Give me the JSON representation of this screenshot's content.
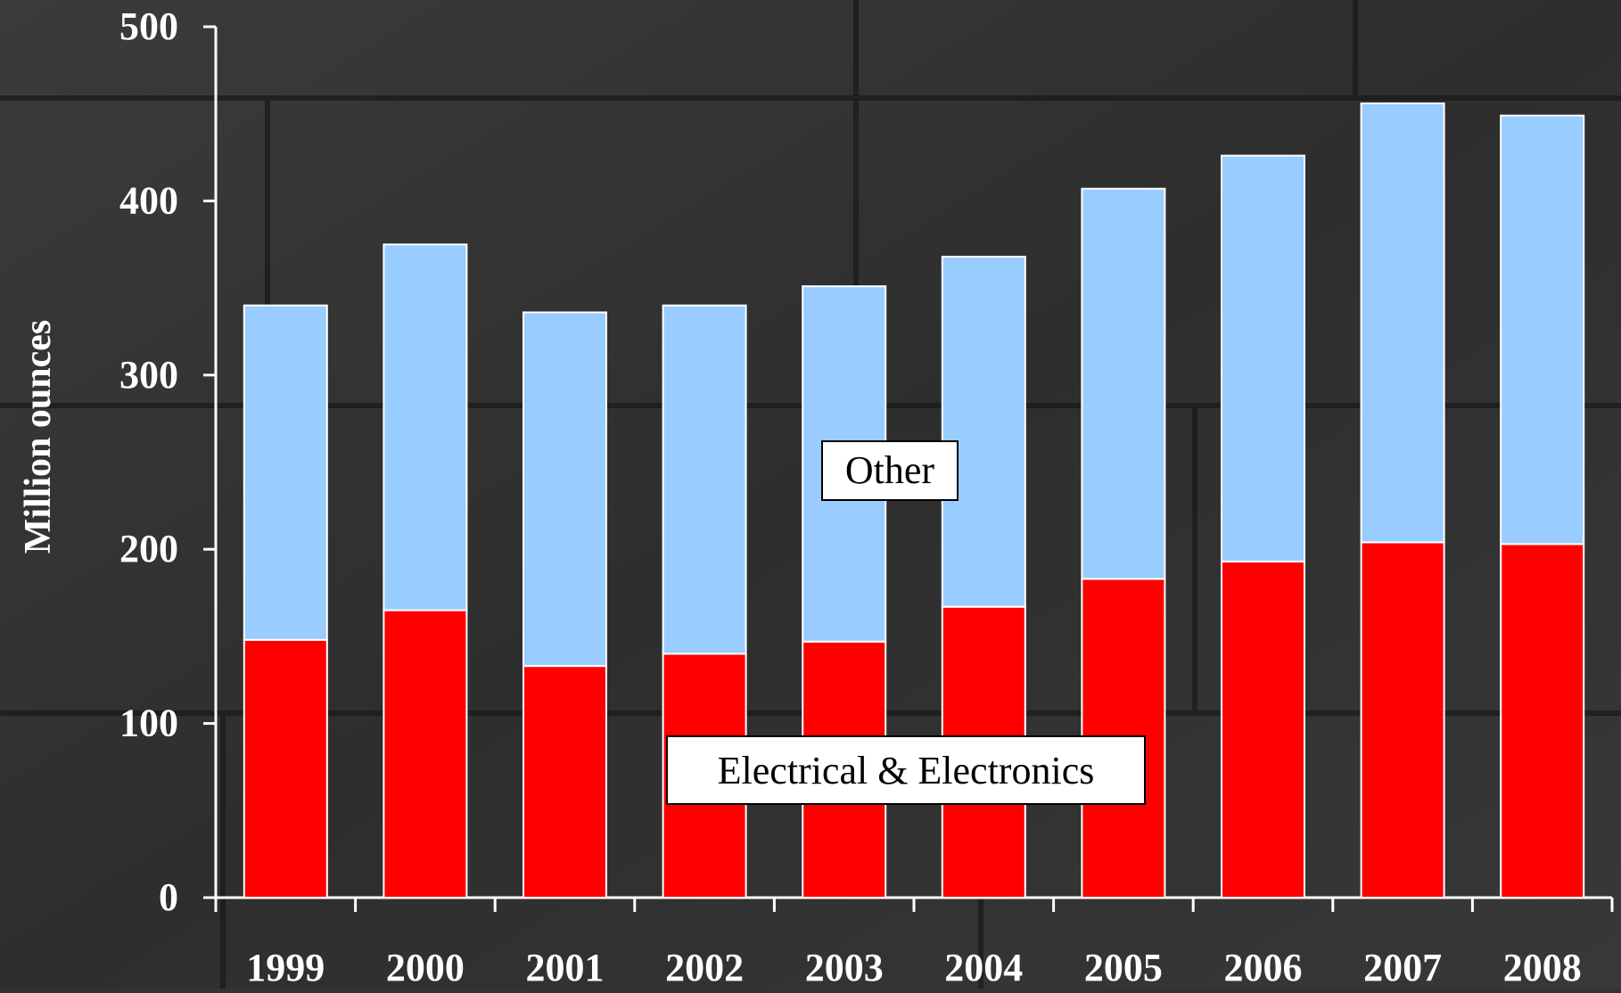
{
  "chart_data": {
    "type": "bar",
    "stacked": true,
    "categories": [
      "1999",
      "2000",
      "2001",
      "2002",
      "2003",
      "2004",
      "2005",
      "2006",
      "2007",
      "2008"
    ],
    "series": [
      {
        "name": "Electrical & Electronics",
        "color": "#ff0000",
        "values": [
          148,
          165,
          133,
          140,
          147,
          167,
          183,
          193,
          204,
          203
        ]
      },
      {
        "name": "Other",
        "color": "#99ccff",
        "values": [
          192,
          210,
          203,
          200,
          204,
          201,
          224,
          233,
          252,
          246
        ]
      }
    ],
    "title": "",
    "xlabel": "",
    "ylabel": "Million ounces",
    "ylim": [
      0,
      500
    ],
    "yticks": [
      0,
      100,
      200,
      300,
      400,
      500
    ],
    "grid": false,
    "legend": "inline labels"
  },
  "colors": {
    "background": "#333333",
    "bar_outline": "#ffffff",
    "axis": "#ffffff",
    "tick_text": "#ffffff"
  }
}
